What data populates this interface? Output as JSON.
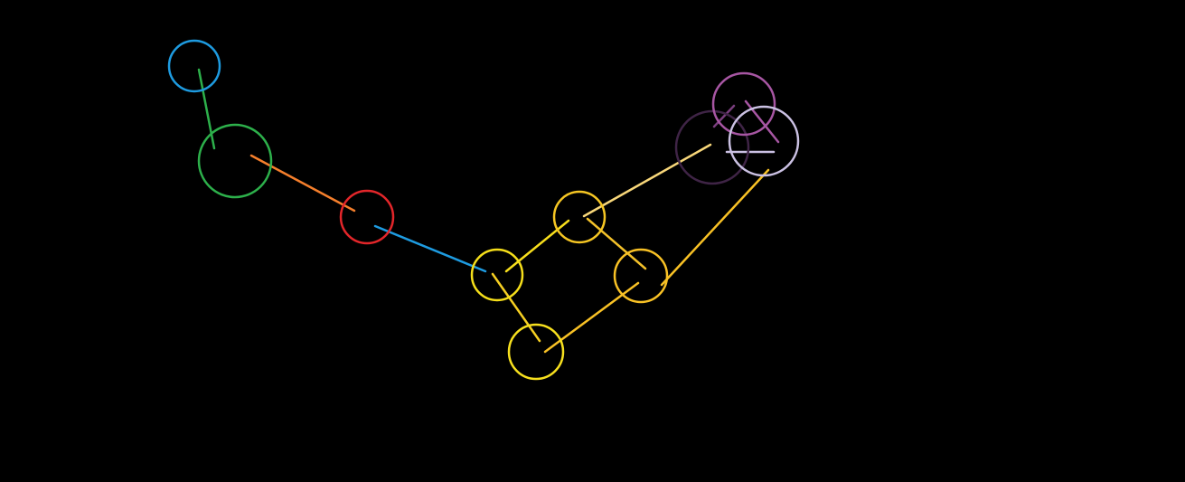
{
  "background_color": "#000000",
  "nodes": [
    {
      "id": "n-blue",
      "color": "#1e9be0"
    },
    {
      "id": "n-green",
      "color": "#2db04b"
    },
    {
      "id": "n-red",
      "color": "#e3262a"
    },
    {
      "id": "n-yellow-1",
      "color": "#f5de1a"
    },
    {
      "id": "n-yellow-2",
      "color": "#f7e01e"
    },
    {
      "id": "n-yellow-3",
      "color": "#f6c623"
    },
    {
      "id": "n-yellow-4",
      "color": "#f8c125"
    },
    {
      "id": "n-dark-purple",
      "color": "#3f2446"
    },
    {
      "id": "n-purple",
      "color": "#a756a3"
    },
    {
      "id": "n-lavender",
      "color": "#cbc1e3"
    }
  ],
  "edges": [
    {
      "id": "e-blue-green",
      "color": "#2db04b"
    },
    {
      "id": "e-green-red",
      "color": "#f57f2c"
    },
    {
      "id": "e-red-yellow1",
      "color": "#1e9be0"
    },
    {
      "id": "e-yellow1-yellow3",
      "color": "#f7de1c"
    },
    {
      "id": "e-yellow1-yellow2",
      "color": "#f5cf22"
    },
    {
      "id": "e-yellow3-yellow4",
      "color": "#f3c12a"
    },
    {
      "id": "e-yellow2-yellow4",
      "color": "#f8c125"
    },
    {
      "id": "e-yellow3-darkpurple",
      "color": "#f8d77a"
    },
    {
      "id": "e-yellow4-lavender",
      "color": "#f8c125"
    },
    {
      "id": "e-darkpurple-purple",
      "color": "#7a3e7e"
    },
    {
      "id": "e-purple-lavender",
      "color": "#a756a3"
    },
    {
      "id": "e-lavender-mark",
      "color": "#cbc1e3"
    }
  ]
}
